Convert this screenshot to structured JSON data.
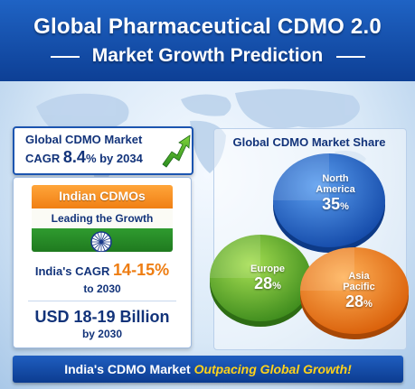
{
  "header": {
    "title": "Global Pharmaceutical CDMO 2.0",
    "subtitle": "Market Growth Prediction"
  },
  "global_cagr": {
    "line1": "Global CDMO Market",
    "prefix": "CAGR",
    "value": "8.4",
    "suffix": "% by 2034",
    "icon": "growth-arrow-icon"
  },
  "india": {
    "heading": "Indian CDMOs",
    "subheading": "Leading the Growth",
    "cagr_prefix": "India's CAGR",
    "cagr_value": "14-15",
    "cagr_unit": "%",
    "cagr_year": "to 2030",
    "market_size": "USD 18-19 Billion",
    "market_year": "by 2030",
    "colors": {
      "saffron": "#f28a1e",
      "white": "#fbfbf5",
      "green": "#248a24",
      "chakra": "#1a3a8a"
    }
  },
  "share": {
    "title": "Global CDMO Market Share",
    "segments": [
      {
        "name_lines": [
          "North",
          "America"
        ],
        "value": "35",
        "unit": "%",
        "color": "#1d5fc4"
      },
      {
        "name_lines": [
          "Europe"
        ],
        "value": "28",
        "unit": "%",
        "color": "#5ba62a"
      },
      {
        "name_lines": [
          "Asia",
          "Pacific"
        ],
        "value": "28",
        "unit": "%",
        "color": "#f07a12"
      }
    ]
  },
  "banner": {
    "text_plain": "India's CDMO Market",
    "text_highlight": "Outpacing Global Growth!"
  }
}
